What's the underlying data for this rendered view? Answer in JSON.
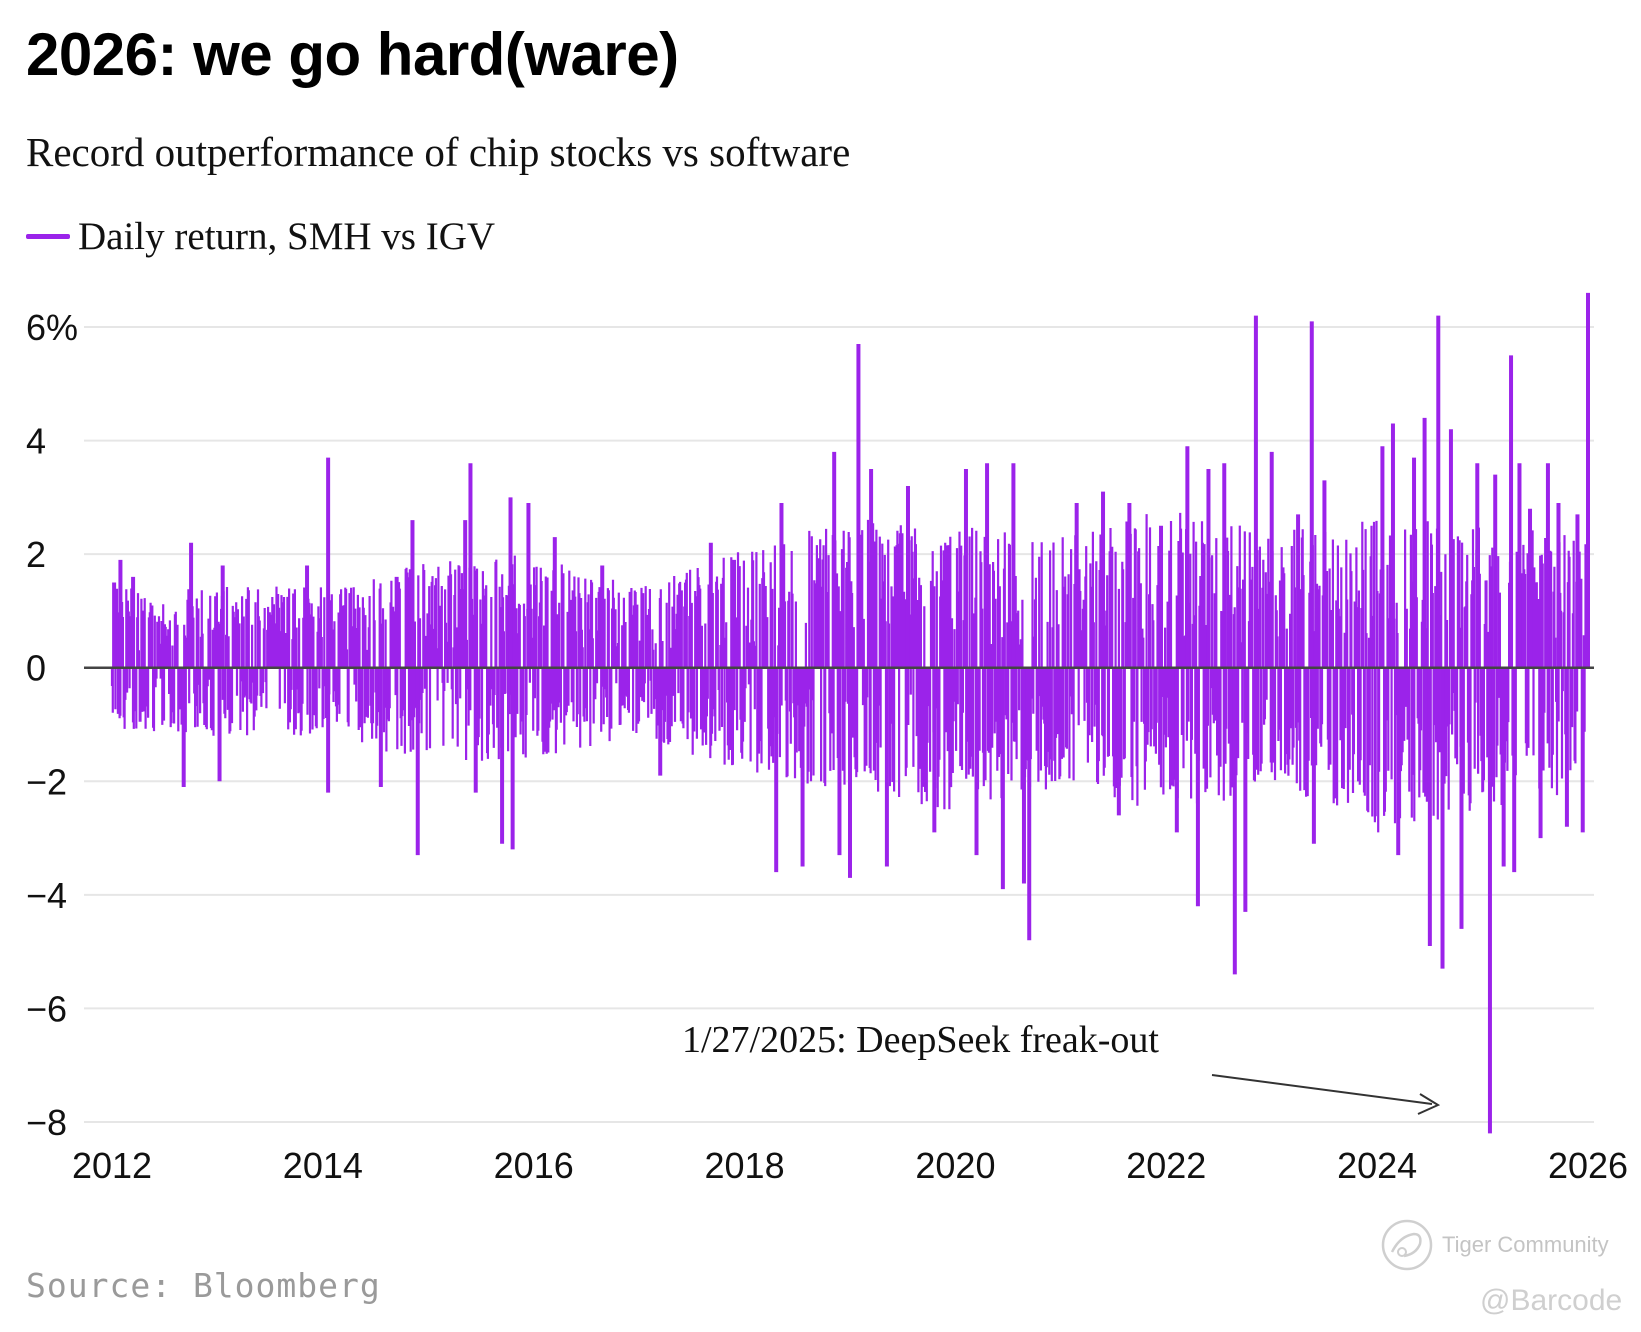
{
  "header": {
    "title": "2026: we go hard(ware)",
    "subtitle": "Record outperformance of chip stocks vs software"
  },
  "legend": {
    "label": "Daily return, SMH vs IGV",
    "color": "#9b23ea"
  },
  "footer": {
    "source": "Source: Bloomberg"
  },
  "watermarks": {
    "brand": "Tiger Community",
    "handle": "@Barcode"
  },
  "chart_data": {
    "type": "bar",
    "title": "2026: we go hard(ware)",
    "subtitle": "Record outperformance of chip stocks vs software",
    "xlabel": "",
    "ylabel": "",
    "xlim": [
      2012,
      2026
    ],
    "ylim": [
      -8,
      6
    ],
    "x_ticks": [
      2012,
      2014,
      2016,
      2018,
      2020,
      2022,
      2024,
      2026
    ],
    "x_tick_labels": [
      "2012",
      "2014",
      "2016",
      "2018",
      "2020",
      "2022",
      "2024",
      "2026"
    ],
    "y_ticks": [
      6,
      4,
      2,
      0,
      -2,
      -4,
      -6,
      -8
    ],
    "y_tick_labels": [
      "6%",
      "4",
      "2",
      "0",
      "−2",
      "−4",
      "−6",
      "−8"
    ],
    "grid": true,
    "legend_position": "top-left",
    "series_name": "Daily return, SMH vs IGV",
    "color": "#9b23ea",
    "envelope": {
      "year": [
        2012,
        2013,
        2014,
        2015,
        2016,
        2017,
        2018,
        2019,
        2020,
        2021,
        2022,
        2023,
        2024,
        2025,
        2026
      ],
      "high": [
        1.3,
        1.3,
        1.3,
        1.8,
        1.8,
        1.3,
        1.9,
        2.4,
        2.3,
        2.1,
        2.6,
        2.2,
        2.4,
        2.3,
        2.1
      ],
      "low": [
        -1.0,
        -1.1,
        -1.1,
        -1.5,
        -1.5,
        -1.1,
        -1.7,
        -2.0,
        -2.3,
        -1.9,
        -2.4,
        -1.9,
        -2.7,
        -2.3,
        -2.0
      ]
    },
    "spikes": [
      {
        "x": 2012.02,
        "y": 1.5
      },
      {
        "x": 2012.08,
        "y": 1.9
      },
      {
        "x": 2012.2,
        "y": 1.6
      },
      {
        "x": 2012.75,
        "y": 2.2
      },
      {
        "x": 2013.05,
        "y": 1.8
      },
      {
        "x": 2013.02,
        "y": -2.0
      },
      {
        "x": 2012.68,
        "y": -2.1
      },
      {
        "x": 2013.85,
        "y": 1.8
      },
      {
        "x": 2014.05,
        "y": 3.7
      },
      {
        "x": 2014.05,
        "y": -2.2
      },
      {
        "x": 2014.55,
        "y": -2.1
      },
      {
        "x": 2014.7,
        "y": 1.6
      },
      {
        "x": 2014.85,
        "y": 2.6
      },
      {
        "x": 2014.9,
        "y": -3.3
      },
      {
        "x": 2015.35,
        "y": 2.6
      },
      {
        "x": 2015.4,
        "y": 3.6
      },
      {
        "x": 2015.45,
        "y": -2.2
      },
      {
        "x": 2015.7,
        "y": -3.1
      },
      {
        "x": 2015.78,
        "y": 3.0
      },
      {
        "x": 2015.8,
        "y": -3.2
      },
      {
        "x": 2015.95,
        "y": 2.9
      },
      {
        "x": 2016.2,
        "y": 2.3
      },
      {
        "x": 2016.65,
        "y": 1.8
      },
      {
        "x": 2017.2,
        "y": -1.9
      },
      {
        "x": 2017.68,
        "y": 2.2
      },
      {
        "x": 2017.9,
        "y": 1.9
      },
      {
        "x": 2018.3,
        "y": -3.6
      },
      {
        "x": 2018.35,
        "y": 2.9
      },
      {
        "x": 2018.55,
        "y": -3.5
      },
      {
        "x": 2018.85,
        "y": 3.8
      },
      {
        "x": 2018.9,
        "y": -3.3
      },
      {
        "x": 2019.0,
        "y": -3.7
      },
      {
        "x": 2019.08,
        "y": 5.7
      },
      {
        "x": 2019.2,
        "y": 3.5
      },
      {
        "x": 2019.35,
        "y": -3.5
      },
      {
        "x": 2019.55,
        "y": 3.2
      },
      {
        "x": 2019.8,
        "y": -2.9
      },
      {
        "x": 2020.1,
        "y": 3.5
      },
      {
        "x": 2020.2,
        "y": -3.3
      },
      {
        "x": 2020.3,
        "y": 3.6
      },
      {
        "x": 2020.45,
        "y": -3.9
      },
      {
        "x": 2020.55,
        "y": 3.6
      },
      {
        "x": 2020.65,
        "y": -3.8
      },
      {
        "x": 2020.7,
        "y": -4.8
      },
      {
        "x": 2021.15,
        "y": 2.9
      },
      {
        "x": 2021.4,
        "y": 3.1
      },
      {
        "x": 2021.55,
        "y": -2.6
      },
      {
        "x": 2021.65,
        "y": 2.9
      },
      {
        "x": 2021.95,
        "y": 2.5
      },
      {
        "x": 2022.1,
        "y": -2.9
      },
      {
        "x": 2022.2,
        "y": 3.9
      },
      {
        "x": 2022.3,
        "y": -4.2
      },
      {
        "x": 2022.4,
        "y": 3.5
      },
      {
        "x": 2022.55,
        "y": 3.6
      },
      {
        "x": 2022.65,
        "y": -5.4
      },
      {
        "x": 2022.75,
        "y": -4.3
      },
      {
        "x": 2022.85,
        "y": 6.2
      },
      {
        "x": 2023.0,
        "y": 3.8
      },
      {
        "x": 2023.25,
        "y": 2.7
      },
      {
        "x": 2023.38,
        "y": 6.1
      },
      {
        "x": 2023.4,
        "y": -3.1
      },
      {
        "x": 2023.5,
        "y": 3.3
      },
      {
        "x": 2023.6,
        "y": -2.3
      },
      {
        "x": 2024.05,
        "y": 3.9
      },
      {
        "x": 2024.15,
        "y": 4.3
      },
      {
        "x": 2024.2,
        "y": -3.3
      },
      {
        "x": 2024.35,
        "y": 3.7
      },
      {
        "x": 2024.45,
        "y": 4.4
      },
      {
        "x": 2024.5,
        "y": -4.9
      },
      {
        "x": 2024.58,
        "y": 6.2
      },
      {
        "x": 2024.62,
        "y": -5.3
      },
      {
        "x": 2024.7,
        "y": 4.2
      },
      {
        "x": 2024.8,
        "y": -4.6
      },
      {
        "x": 2024.95,
        "y": 3.6
      },
      {
        "x": 2025.07,
        "y": -8.2
      },
      {
        "x": 2025.12,
        "y": 3.4
      },
      {
        "x": 2025.2,
        "y": -3.5
      },
      {
        "x": 2025.27,
        "y": 5.5
      },
      {
        "x": 2025.3,
        "y": -3.6
      },
      {
        "x": 2025.35,
        "y": 3.6
      },
      {
        "x": 2025.45,
        "y": 2.8
      },
      {
        "x": 2025.55,
        "y": -3.0
      },
      {
        "x": 2025.62,
        "y": 3.6
      },
      {
        "x": 2025.72,
        "y": 2.9
      },
      {
        "x": 2025.8,
        "y": -2.8
      },
      {
        "x": 2025.9,
        "y": 2.7
      },
      {
        "x": 2025.95,
        "y": -2.9
      },
      {
        "x": 2026.0,
        "y": 6.6
      }
    ],
    "annotations": [
      {
        "text": "1/27/2025: DeepSeek freak-out",
        "x": 2025.07,
        "y": -8.2
      }
    ]
  }
}
